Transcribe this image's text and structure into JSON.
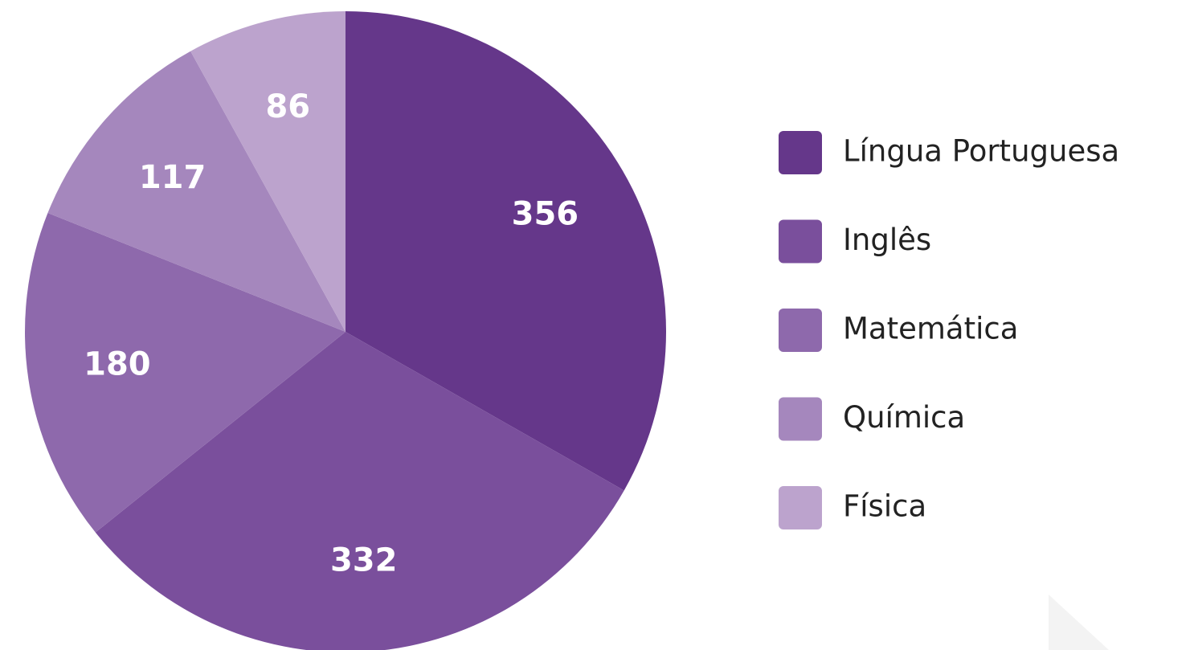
{
  "chart_data": {
    "type": "pie",
    "categories": [
      "Língua Portuguesa",
      "Inglês",
      "Matemática",
      "Química",
      "Física"
    ],
    "values": [
      356,
      332,
      180,
      117,
      86
    ],
    "colors": [
      "#65378a",
      "#7a4f9c",
      "#8e69ac",
      "#a587bd",
      "#bca3cd"
    ],
    "legend": "right"
  }
}
